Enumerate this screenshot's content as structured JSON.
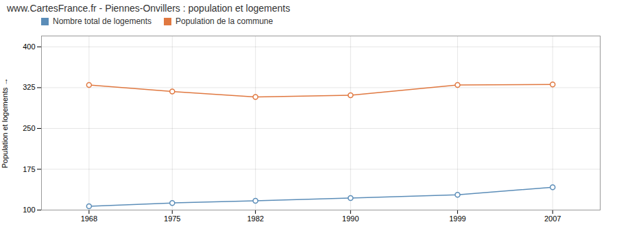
{
  "chart_data": {
    "type": "line",
    "title": "www.CartesFrance.fr - Piennes-Onvillers : population et logements",
    "ylabel": "Population et logements",
    "x": [
      1968,
      1975,
      1982,
      1990,
      1999,
      2007
    ],
    "series": [
      {
        "name": "Nombre total de logements",
        "color": "#5b8db8",
        "marker": "circle",
        "values": [
          107,
          113,
          117,
          122,
          128,
          142
        ]
      },
      {
        "name": "Population de la commune",
        "color": "#e07840",
        "marker": "circle",
        "values": [
          330,
          318,
          308,
          311,
          330,
          331
        ]
      }
    ],
    "xlim": [
      1964,
      2011
    ],
    "xticks": [
      1968,
      1975,
      1982,
      1990,
      1999,
      2007
    ],
    "ylim": [
      100,
      420
    ],
    "yticks": [
      100,
      175,
      250,
      325,
      400
    ],
    "grid": true,
    "legend": "upper left"
  }
}
